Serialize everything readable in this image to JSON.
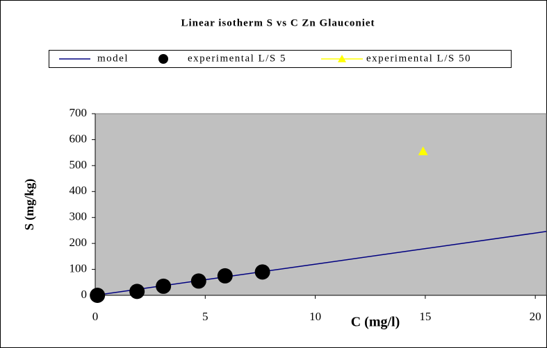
{
  "chart_data": {
    "type": "scatter",
    "title": "Linear isotherm S vs C Zn Glauconiet",
    "x_label": "C (mg/l)",
    "y_label": "S (mg/kg)",
    "xlim": [
      0,
      20.5
    ],
    "xticks": [
      0,
      5,
      10,
      15,
      20
    ],
    "ylim": [
      0,
      700
    ],
    "yticks": [
      0,
      100,
      200,
      300,
      400,
      500,
      600,
      700
    ],
    "plot_background": "#c0c0c0",
    "series": [
      {
        "name": "model",
        "color": "#000080",
        "marker": "none",
        "line": true,
        "x": [
          0,
          5,
          10,
          15,
          20.5
        ],
        "values": [
          0,
          60,
          120,
          180,
          246
        ]
      },
      {
        "name": "experimental L/S 5",
        "color": "#000000",
        "marker": "circle",
        "line": false,
        "x": [
          0.1,
          1.9,
          3.1,
          4.7,
          5.9,
          7.6
        ],
        "values": [
          0,
          15,
          35,
          55,
          75,
          90
        ]
      },
      {
        "name": "experimental L/S 50",
        "color": "#ffff00",
        "marker": "triangle",
        "line": false,
        "x": [
          14.9
        ],
        "values": [
          555
        ]
      }
    ]
  }
}
